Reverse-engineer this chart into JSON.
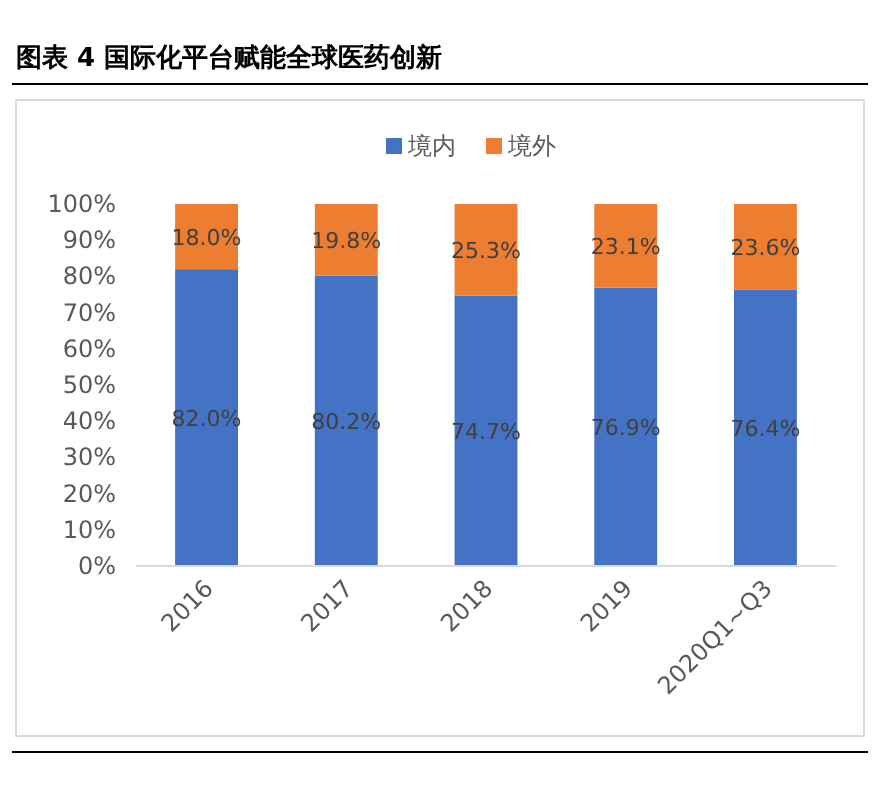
{
  "chart_data": {
    "type": "bar",
    "title": "图表 4 国际化平台赋能全球医药创新",
    "categories": [
      "2016",
      "2017",
      "2018",
      "2019",
      "2020Q1~Q3"
    ],
    "stacked": true,
    "series": [
      {
        "name": "境内",
        "color": "#4472c4",
        "values": [
          82.0,
          80.2,
          74.7,
          76.9,
          76.4
        ],
        "value_labels": [
          "82.0%",
          "80.2%",
          "74.7%",
          "76.9%",
          "76.4%"
        ]
      },
      {
        "name": "境外",
        "color": "#ed7d31",
        "values": [
          18.0,
          19.8,
          25.3,
          23.1,
          23.6
        ],
        "value_labels": [
          "18.0%",
          "19.8%",
          "25.3%",
          "23.1%",
          "23.6%"
        ]
      }
    ],
    "ylim": [
      0,
      100
    ],
    "yticks": [
      {
        "value": 0,
        "label": "0%"
      },
      {
        "value": 10,
        "label": "10%"
      },
      {
        "value": 20,
        "label": "20%"
      },
      {
        "value": 30,
        "label": "30%"
      },
      {
        "value": 40,
        "label": "40%"
      },
      {
        "value": 50,
        "label": "50%"
      },
      {
        "value": 60,
        "label": "60%"
      },
      {
        "value": 70,
        "label": "70%"
      },
      {
        "value": 80,
        "label": "80%"
      },
      {
        "value": 90,
        "label": "90%"
      },
      {
        "value": 100,
        "label": "100%"
      }
    ],
    "grid": false,
    "legend": "top"
  }
}
